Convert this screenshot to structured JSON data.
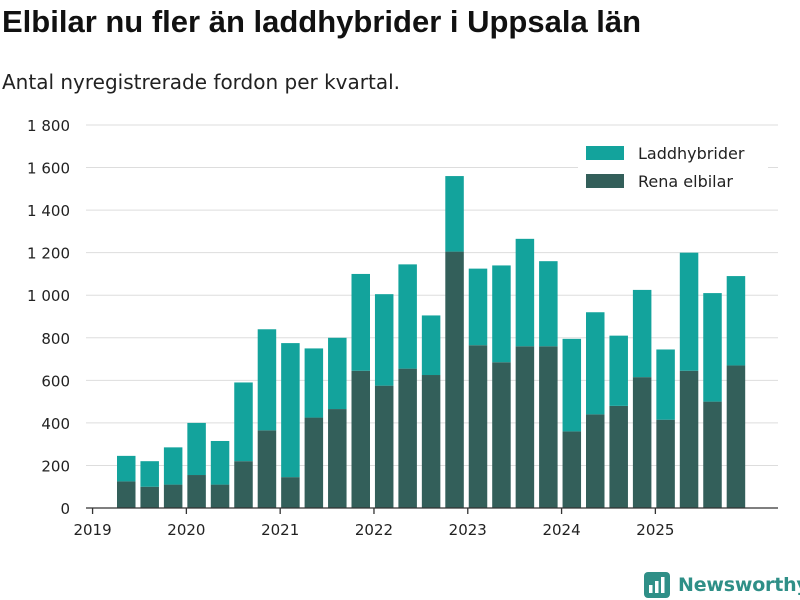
{
  "header": {
    "title": "Elbilar nu fler än laddhybrider i Uppsala län",
    "subtitle": "Antal nyregistrerade fordon per kvartal."
  },
  "brand": {
    "name": "Newsworthy",
    "color": "#2f8f87"
  },
  "colors": {
    "laddhybrider": "#13a39c",
    "rena_elbilar": "#335f5a",
    "grid": "#dddddd",
    "axis": "#333333"
  },
  "chart_data": {
    "type": "bar",
    "stacked": true,
    "title": "Elbilar nu fler än laddhybrider i Uppsala län",
    "subtitle": "Antal nyregistrerade fordon per kvartal.",
    "xlabel": "",
    "ylabel": "",
    "ylim": [
      0,
      1800
    ],
    "yticks": [
      0,
      200,
      400,
      600,
      800,
      1000,
      1200,
      1400,
      1600,
      1800
    ],
    "ytick_labels": [
      "0",
      "200",
      "400",
      "600",
      "800",
      "1 000",
      "1 200",
      "1 400",
      "1 600",
      "1 800"
    ],
    "xtick_labels": [
      "2019",
      "2020",
      "2021",
      "2022",
      "2023",
      "2024",
      "2025"
    ],
    "legend_position": "top-right",
    "grid": true,
    "categories": [
      "2019-Q2",
      "2019-Q3",
      "2019-Q4",
      "2020-Q1",
      "2020-Q2",
      "2020-Q3",
      "2020-Q4",
      "2021-Q1",
      "2021-Q2",
      "2021-Q3",
      "2021-Q4",
      "2022-Q1",
      "2022-Q2",
      "2022-Q3",
      "2022-Q4",
      "2023-Q1",
      "2023-Q2",
      "2023-Q3",
      "2023-Q4",
      "2024-Q1",
      "2024-Q2",
      "2024-Q3",
      "2024-Q4",
      "2025-Q1",
      "2025-Q2",
      "2025-Q3",
      "2025-Q4"
    ],
    "series": [
      {
        "name": "Rena elbilar",
        "key": "rena_elbilar",
        "values": [
          125,
          100,
          110,
          155,
          110,
          220,
          365,
          145,
          425,
          465,
          645,
          575,
          655,
          625,
          1205,
          765,
          685,
          760,
          760,
          360,
          440,
          480,
          615,
          415,
          645,
          500,
          670
        ]
      },
      {
        "name": "Laddhybrider",
        "key": "laddhybrider",
        "values": [
          120,
          120,
          175,
          245,
          205,
          370,
          475,
          630,
          325,
          335,
          455,
          430,
          490,
          280,
          355,
          360,
          455,
          505,
          400,
          435,
          480,
          330,
          410,
          330,
          555,
          510,
          420
        ]
      }
    ],
    "legend": [
      "Laddhybrider",
      "Rena elbilar"
    ]
  }
}
